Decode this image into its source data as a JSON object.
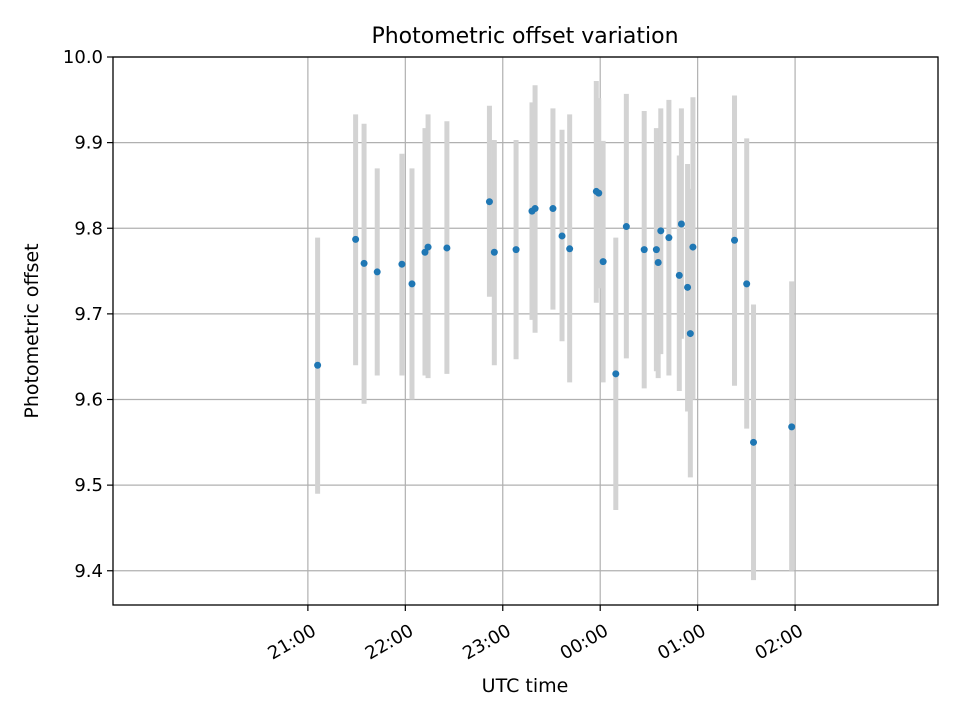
{
  "chart_data": {
    "type": "scatter",
    "title": "Photometric offset variation",
    "xlabel": "UTC time",
    "ylabel": "Photometric offset",
    "x_unit": "minutes from 00:00 UTC",
    "xlim": [
      -300,
      208
    ],
    "ylim": [
      9.36,
      10.0
    ],
    "x_ticks": [
      {
        "value": -180,
        "label": "21:00"
      },
      {
        "value": -120,
        "label": "22:00"
      },
      {
        "value": -60,
        "label": "23:00"
      },
      {
        "value": 0,
        "label": "00:00"
      },
      {
        "value": 60,
        "label": "01:00"
      },
      {
        "value": 120,
        "label": "02:00"
      }
    ],
    "y_ticks": [
      9.4,
      9.5,
      9.6,
      9.7,
      9.8,
      9.9,
      10.0
    ],
    "grid": true,
    "marker_color": "#1f77b4",
    "errorbar_color": "#d3d3d3",
    "series": [
      {
        "points": [
          {
            "x": -174.0,
            "y": 9.64,
            "lo": 9.49,
            "hi": 9.789
          },
          {
            "x": -150.6,
            "y": 9.787,
            "lo": 9.64,
            "hi": 9.933
          },
          {
            "x": -145.4,
            "y": 9.759,
            "lo": 9.595,
            "hi": 9.922
          },
          {
            "x": -137.3,
            "y": 9.749,
            "lo": 9.628,
            "hi": 9.87
          },
          {
            "x": -122.1,
            "y": 9.758,
            "lo": 9.628,
            "hi": 9.887
          },
          {
            "x": -115.9,
            "y": 9.735,
            "lo": 9.6,
            "hi": 9.87
          },
          {
            "x": -107.9,
            "y": 9.772,
            "lo": 9.628,
            "hi": 9.917
          },
          {
            "x": -106.0,
            "y": 9.778,
            "lo": 9.625,
            "hi": 9.933
          },
          {
            "x": -94.4,
            "y": 9.777,
            "lo": 9.63,
            "hi": 9.925
          },
          {
            "x": -68.2,
            "y": 9.831,
            "lo": 9.72,
            "hi": 9.943
          },
          {
            "x": -65.2,
            "y": 9.772,
            "lo": 9.64,
            "hi": 9.903
          },
          {
            "x": -51.8,
            "y": 9.775,
            "lo": 9.647,
            "hi": 9.903
          },
          {
            "x": -42.0,
            "y": 9.82,
            "lo": 9.693,
            "hi": 9.947
          },
          {
            "x": -40.1,
            "y": 9.823,
            "lo": 9.678,
            "hi": 9.967
          },
          {
            "x": -29.1,
            "y": 9.823,
            "lo": 9.705,
            "hi": 9.94
          },
          {
            "x": -23.5,
            "y": 9.791,
            "lo": 9.668,
            "hi": 9.915
          },
          {
            "x": -18.8,
            "y": 9.776,
            "lo": 9.62,
            "hi": 9.933
          },
          {
            "x": -2.4,
            "y": 9.843,
            "lo": 9.713,
            "hi": 9.972
          },
          {
            "x": -0.9,
            "y": 9.841,
            "lo": 9.73,
            "hi": 9.952
          },
          {
            "x": 1.8,
            "y": 9.761,
            "lo": 9.62,
            "hi": 9.902
          },
          {
            "x": 9.6,
            "y": 9.63,
            "lo": 9.471,
            "hi": 9.789
          },
          {
            "x": 16.1,
            "y": 9.802,
            "lo": 9.648,
            "hi": 9.957
          },
          {
            "x": 27.1,
            "y": 9.775,
            "lo": 9.613,
            "hi": 9.937
          },
          {
            "x": 34.6,
            "y": 9.775,
            "lo": 9.633,
            "hi": 9.917
          },
          {
            "x": 35.7,
            "y": 9.76,
            "lo": 9.625,
            "hi": 9.893
          },
          {
            "x": 37.3,
            "y": 9.797,
            "lo": 9.653,
            "hi": 9.94
          },
          {
            "x": 42.3,
            "y": 9.789,
            "lo": 9.628,
            "hi": 9.95
          },
          {
            "x": 48.7,
            "y": 9.745,
            "lo": 9.61,
            "hi": 9.885
          },
          {
            "x": 50.0,
            "y": 9.805,
            "lo": 9.671,
            "hi": 9.94
          },
          {
            "x": 53.8,
            "y": 9.731,
            "lo": 9.586,
            "hi": 9.875
          },
          {
            "x": 55.5,
            "y": 9.677,
            "lo": 9.509,
            "hi": 9.846
          },
          {
            "x": 57.1,
            "y": 9.778,
            "lo": 9.6,
            "hi": 9.953
          },
          {
            "x": 82.7,
            "y": 9.786,
            "lo": 9.616,
            "hi": 9.955
          },
          {
            "x": 90.2,
            "y": 9.735,
            "lo": 9.566,
            "hi": 9.905
          },
          {
            "x": 94.4,
            "y": 9.55,
            "lo": 9.389,
            "hi": 9.711
          },
          {
            "x": 117.9,
            "y": 9.568,
            "lo": 9.4,
            "hi": 9.738
          }
        ]
      }
    ]
  }
}
